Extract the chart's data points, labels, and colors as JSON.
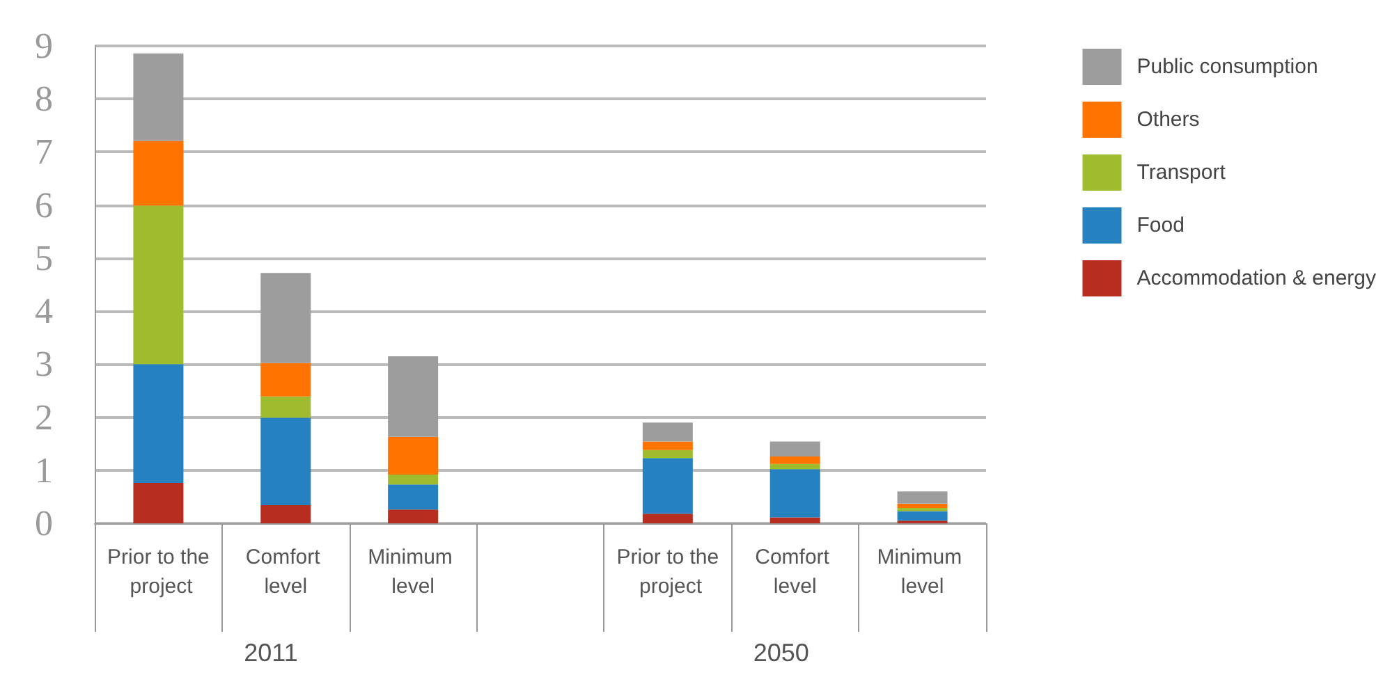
{
  "chart_data": {
    "type": "bar",
    "stacked": true,
    "categories": [
      "Prior to the project",
      "Comfort level",
      "Minimum level",
      null,
      "Prior to the project",
      "Comfort level",
      "Minimum level"
    ],
    "series": [
      {
        "name": "Accommodation & energy",
        "color": "#b72d1f",
        "values": [
          0.76,
          0.34,
          0.26,
          null,
          0.18,
          0.11,
          0.05
        ]
      },
      {
        "name": "Food",
        "color": "#2581c0",
        "values": [
          2.24,
          1.65,
          0.47,
          null,
          1.05,
          0.91,
          0.18
        ]
      },
      {
        "name": "Transport",
        "color": "#9fbc2f",
        "values": [
          2.99,
          0.4,
          0.19,
          null,
          0.15,
          0.1,
          0.06
        ]
      },
      {
        "name": "Others",
        "color": "#ff7300",
        "values": [
          1.22,
          0.63,
          0.71,
          null,
          0.16,
          0.14,
          0.08
        ]
      },
      {
        "name": "Public consumption",
        "color": "#9d9d9d",
        "values": [
          1.65,
          1.7,
          1.52,
          null,
          0.36,
          0.28,
          0.23
        ]
      }
    ],
    "annotations": [
      "2011",
      "2050"
    ],
    "ylim": [
      0,
      9
    ],
    "yticks": [
      0,
      1,
      2,
      3,
      4,
      5,
      6,
      7,
      8,
      9
    ],
    "grid": "y",
    "legend": "right"
  }
}
